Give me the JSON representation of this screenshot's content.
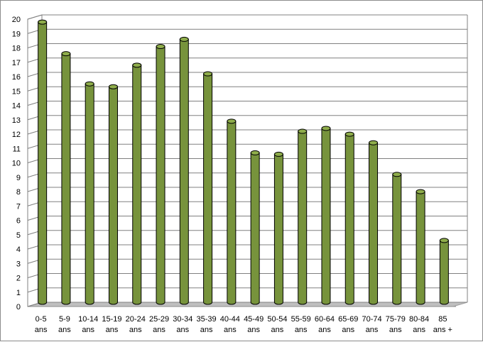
{
  "chart_data": {
    "type": "bar",
    "style": "3d-cylinder",
    "title": "",
    "xlabel": "",
    "ylabel": "",
    "categories": [
      [
        "0-5",
        "ans"
      ],
      [
        "5-9",
        "ans"
      ],
      [
        "10-14",
        "ans"
      ],
      [
        "15-19",
        "ans"
      ],
      [
        "20-24",
        "ans"
      ],
      [
        "25-29",
        "ans"
      ],
      [
        "30-34",
        "ans"
      ],
      [
        "35-39",
        "ans"
      ],
      [
        "40-44",
        "ans"
      ],
      [
        "45-49",
        "ans"
      ],
      [
        "50-54",
        "ans"
      ],
      [
        "55-59",
        "ans"
      ],
      [
        "60-64",
        "ans"
      ],
      [
        "65-69",
        "ans"
      ],
      [
        "70-74",
        "ans"
      ],
      [
        "75-79",
        "ans"
      ],
      [
        "80-84",
        "ans"
      ],
      [
        "85",
        "ans +"
      ]
    ],
    "values": [
      19.5,
      17.3,
      15.2,
      15.0,
      16.5,
      17.8,
      18.3,
      15.9,
      12.6,
      10.4,
      10.3,
      11.9,
      12.1,
      11.7,
      11.1,
      8.9,
      7.7,
      4.3
    ],
    "ylim": [
      0,
      20
    ],
    "yticks": [
      0,
      1,
      2,
      3,
      4,
      5,
      6,
      7,
      8,
      9,
      10,
      11,
      12,
      13,
      14,
      15,
      16,
      17,
      18,
      19,
      20
    ],
    "grid": true,
    "legend": "none",
    "colors": {
      "bar_fill": "#77933c",
      "bar_top": "#8fad4b",
      "bar_outline": "#000000",
      "gridline": "#808080",
      "floor": "#bfbfbf"
    }
  }
}
